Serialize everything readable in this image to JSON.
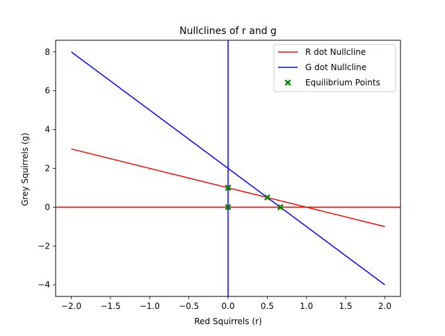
{
  "chart_data": {
    "type": "line",
    "title": "Nullclines of r and g",
    "xlabel": "Red Squirrels (r)",
    "ylabel": "Grey Squirrels (g)",
    "xlim": [
      -2.2,
      2.2
    ],
    "ylim": [
      -4.6,
      8.6
    ],
    "xticks": [
      -2.0,
      -1.5,
      -1.0,
      -0.5,
      0.0,
      0.5,
      1.0,
      1.5,
      2.0
    ],
    "xtick_labels": [
      "−2.0",
      "−1.5",
      "−1.0",
      "−0.5",
      "0.0",
      "0.5",
      "1.0",
      "1.5",
      "2.0"
    ],
    "yticks": [
      -4,
      -2,
      0,
      2,
      4,
      6,
      8
    ],
    "ytick_labels": [
      "−4",
      "−2",
      "0",
      "2",
      "4",
      "6",
      "8"
    ],
    "grid": false,
    "legend_position": "top-right",
    "series": [
      {
        "name": "R dot Nullcline",
        "color": "#ff0000",
        "segments": [
          [
            [
              -2.0,
              3.0
            ],
            [
              2.0,
              -1.0
            ]
          ],
          [
            [
              -2.2,
              0.0
            ],
            [
              2.2,
              0.0
            ]
          ]
        ]
      },
      {
        "name": "G dot Nullcline",
        "color": "#0000ff",
        "segments": [
          [
            [
              -2.0,
              8.0
            ],
            [
              2.0,
              -4.0
            ]
          ],
          [
            [
              0.0,
              -4.6
            ],
            [
              0.0,
              8.6
            ]
          ]
        ]
      }
    ],
    "points": {
      "name": "Equilibrium Points",
      "color": "#008000",
      "marker": "x-filled",
      "values": [
        [
          0.0,
          0.0
        ],
        [
          0.0,
          1.0
        ],
        [
          0.5,
          0.5
        ],
        [
          0.667,
          0.0
        ]
      ]
    }
  }
}
